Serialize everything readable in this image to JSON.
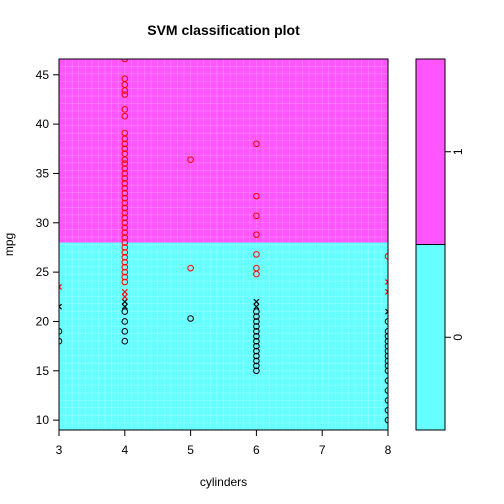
{
  "chart_data": {
    "type": "scatter",
    "title": "SVM classification plot",
    "xlabel": "cylinders",
    "ylabel": "mpg",
    "xlim": [
      3,
      8
    ],
    "ylim": [
      9,
      46.6
    ],
    "x_ticks": [
      "3",
      "4",
      "5",
      "6",
      "7",
      "8"
    ],
    "y_ticks": [
      "10",
      "15",
      "20",
      "25",
      "30",
      "35",
      "40",
      "45"
    ],
    "decision_boundary_mpg": 28.0,
    "regions": [
      {
        "class": "1",
        "color": "#FF55FF",
        "mpg_range": [
          28.0,
          46.6
        ]
      },
      {
        "class": "0",
        "color": "#66FFFF",
        "mpg_range": [
          9,
          28.0
        ]
      }
    ],
    "legend": {
      "classes": [
        "0",
        "1"
      ],
      "colors": [
        "#66FFFF",
        "#FF55FF"
      ],
      "boundaries": [
        9,
        27.8,
        46.6
      ],
      "placement": "right"
    },
    "series": [
      {
        "name": "0",
        "color": "#000000",
        "marker": "o",
        "points": [
          [
            3,
            19
          ],
          [
            3,
            18
          ],
          [
            4,
            21
          ],
          [
            4,
            20
          ],
          [
            4,
            19
          ],
          [
            4,
            18
          ],
          [
            5,
            20.3
          ],
          [
            6,
            21
          ],
          [
            6,
            20.5
          ],
          [
            6,
            20
          ],
          [
            6,
            19.5
          ],
          [
            6,
            19
          ],
          [
            6,
            18.5
          ],
          [
            6,
            18
          ],
          [
            6,
            17.5
          ],
          [
            6,
            17
          ],
          [
            6,
            16.5
          ],
          [
            6,
            16
          ],
          [
            6,
            15.5
          ],
          [
            6,
            15
          ],
          [
            8,
            20
          ],
          [
            8,
            19
          ],
          [
            8,
            18.5
          ],
          [
            8,
            18
          ],
          [
            8,
            17.5
          ],
          [
            8,
            17
          ],
          [
            8,
            16.5
          ],
          [
            8,
            16
          ],
          [
            8,
            15.5
          ],
          [
            8,
            15
          ],
          [
            8,
            14
          ],
          [
            8,
            13
          ],
          [
            8,
            12
          ],
          [
            8,
            11
          ],
          [
            8,
            10
          ]
        ]
      },
      {
        "name": "0 (support vectors)",
        "color": "#000000",
        "marker": "x",
        "points": [
          [
            3,
            21.5
          ],
          [
            4,
            22
          ],
          [
            4,
            21.5
          ],
          [
            6,
            22
          ],
          [
            6,
            21.5
          ],
          [
            8,
            21
          ]
        ]
      },
      {
        "name": "1 (support vectors)",
        "color": "#FF0000",
        "marker": "x",
        "points": [
          [
            3,
            23.5
          ],
          [
            4,
            23
          ],
          [
            4,
            22.5
          ],
          [
            8,
            24
          ],
          [
            8,
            23
          ]
        ]
      },
      {
        "name": "1",
        "color": "#FF0000",
        "marker": "o",
        "points": [
          [
            4,
            46.6
          ],
          [
            4,
            44.6
          ],
          [
            4,
            44
          ],
          [
            4,
            43.4
          ],
          [
            4,
            43
          ],
          [
            4,
            41.5
          ],
          [
            4,
            40.8
          ],
          [
            4,
            39.1
          ],
          [
            4,
            38.5
          ],
          [
            4,
            38
          ],
          [
            4,
            37.5
          ],
          [
            4,
            37
          ],
          [
            4,
            36.4
          ],
          [
            4,
            36
          ],
          [
            4,
            35.5
          ],
          [
            4,
            35
          ],
          [
            4,
            34.5
          ],
          [
            4,
            34
          ],
          [
            4,
            33.5
          ],
          [
            4,
            33
          ],
          [
            4,
            32.5
          ],
          [
            4,
            32
          ],
          [
            4,
            31.5
          ],
          [
            4,
            31
          ],
          [
            4,
            30.5
          ],
          [
            4,
            30
          ],
          [
            4,
            29.5
          ],
          [
            4,
            29
          ],
          [
            4,
            28.5
          ],
          [
            4,
            28
          ],
          [
            4,
            27.5
          ],
          [
            4,
            27
          ],
          [
            4,
            26.5
          ],
          [
            4,
            26
          ],
          [
            4,
            25.5
          ],
          [
            4,
            25
          ],
          [
            4,
            24.5
          ],
          [
            4,
            24
          ],
          [
            5,
            36.4
          ],
          [
            5,
            25.4
          ],
          [
            6,
            38
          ],
          [
            6,
            32.7
          ],
          [
            6,
            30.7
          ],
          [
            6,
            28.8
          ],
          [
            6,
            26.8
          ],
          [
            6,
            25.4
          ],
          [
            6,
            24.8
          ],
          [
            8,
            26.6
          ]
        ]
      }
    ]
  }
}
